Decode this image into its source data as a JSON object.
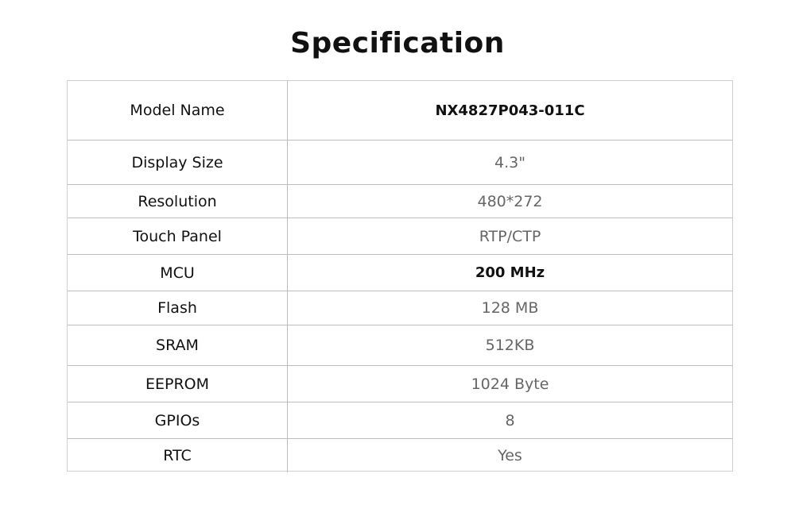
{
  "title": "Specification",
  "rows": [
    {
      "label": "Model Name",
      "value": "NX4827P043-011C",
      "bold": true
    },
    {
      "label": "Display Size",
      "value": "4.3\"",
      "bold": false
    },
    {
      "label": "Resolution",
      "value": "480*272",
      "bold": false
    },
    {
      "label": "Touch Panel",
      "value": "RTP/CTP",
      "bold": false
    },
    {
      "label": "MCU",
      "value": "200 MHz",
      "bold": true
    },
    {
      "label": "Flash",
      "value": "128 MB",
      "bold": false
    },
    {
      "label": "SRAM",
      "value": "512KB",
      "bold": false
    },
    {
      "label": "EEPROM",
      "value": "1024 Byte",
      "bold": false
    },
    {
      "label": "GPIOs",
      "value": "8",
      "bold": false
    },
    {
      "label": "RTC",
      "value": "Yes",
      "bold": false
    }
  ]
}
